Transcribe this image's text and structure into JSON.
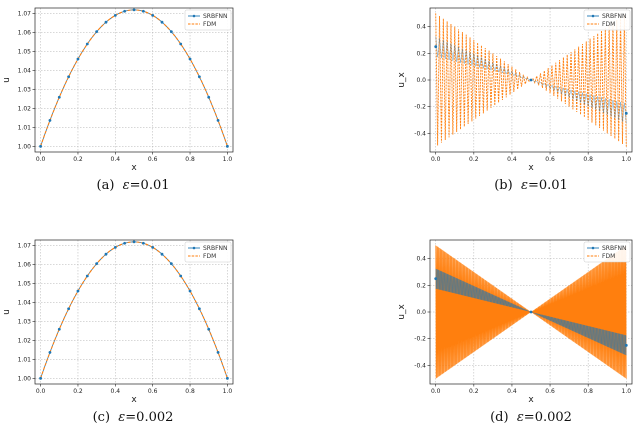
{
  "captions": [
    {
      "label": "(a)",
      "symbol": "ε",
      "value": "=0.01"
    },
    {
      "label": "(b)",
      "symbol": "ε",
      "value": "=0.01"
    },
    {
      "label": "(c)",
      "symbol": "ε",
      "value": "=0.002"
    },
    {
      "label": "(d)",
      "symbol": "ε",
      "value": "=0.002"
    }
  ],
  "colors": {
    "srbfnn": "#1f77b4",
    "fdm": "#ff7f0e",
    "grid": "#b0b0b0"
  },
  "chart_data": [
    {
      "type": "line",
      "xlabel": "x",
      "ylabel": "u",
      "xlim": [
        -0.03,
        1.03
      ],
      "ylim": [
        0.997,
        1.073
      ],
      "xticks": [
        "0.0",
        "0.2",
        "0.4",
        "0.6",
        "0.8",
        "1.0"
      ],
      "yticks": [
        "1.00",
        "1.01",
        "1.02",
        "1.03",
        "1.04",
        "1.05",
        "1.06",
        "1.07"
      ],
      "legend": [
        "SRBFNN",
        "FDM"
      ],
      "legend_position": "upper-right",
      "grid": true,
      "series": [
        {
          "name": "SRBFNN",
          "kind": "markers",
          "x": [
            0,
            0.05,
            0.1,
            0.15,
            0.2,
            0.25,
            0.3,
            0.35,
            0.4,
            0.45,
            0.5,
            0.55,
            0.6,
            0.65,
            0.7,
            0.75,
            0.8,
            0.85,
            0.9,
            0.95,
            1.0
          ],
          "y": [
            1.0,
            1.0137,
            1.0259,
            1.0367,
            1.0461,
            1.054,
            1.0605,
            1.0655,
            1.0691,
            1.0713,
            1.072,
            1.0713,
            1.0691,
            1.0655,
            1.0605,
            1.054,
            1.0461,
            1.0367,
            1.0259,
            1.0137,
            1.0
          ]
        },
        {
          "name": "FDM",
          "kind": "dashed",
          "curve": "parabola",
          "peak": 1.072,
          "base": 1.0
        }
      ]
    },
    {
      "type": "line",
      "xlabel": "x",
      "ylabel": "u_x",
      "xlim": [
        -0.03,
        1.03
      ],
      "ylim": [
        -0.54,
        0.54
      ],
      "xticks": [
        "0.0",
        "0.2",
        "0.4",
        "0.6",
        "0.8",
        "1.0"
      ],
      "yticks": [
        "-0.4",
        "-0.2",
        "0.0",
        "0.2",
        "0.4"
      ],
      "legend": [
        "SRBFNN",
        "FDM"
      ],
      "legend_position": "upper-right",
      "grid": true,
      "series": [
        {
          "name": "SRBFNN",
          "kind": "oscillating",
          "amplitude": 0.5,
          "center": 0.25,
          "periods": 50
        },
        {
          "name": "FDM",
          "kind": "oscillating-dashed",
          "amplitude": 0.5,
          "center": 0.25,
          "periods": 50
        }
      ]
    },
    {
      "type": "line",
      "xlabel": "x",
      "ylabel": "u",
      "xlim": [
        -0.03,
        1.03
      ],
      "ylim": [
        0.997,
        1.073
      ],
      "xticks": [
        "0.0",
        "0.2",
        "0.4",
        "0.6",
        "0.8",
        "1.0"
      ],
      "yticks": [
        "1.00",
        "1.01",
        "1.02",
        "1.03",
        "1.04",
        "1.05",
        "1.06",
        "1.07"
      ],
      "legend": [
        "SRBFNN",
        "FDM"
      ],
      "legend_position": "upper-right",
      "grid": true,
      "series": [
        {
          "name": "SRBFNN",
          "kind": "markers",
          "x": [
            0,
            0.05,
            0.1,
            0.15,
            0.2,
            0.25,
            0.3,
            0.35,
            0.4,
            0.45,
            0.5,
            0.55,
            0.6,
            0.65,
            0.7,
            0.75,
            0.8,
            0.85,
            0.9,
            0.95,
            1.0
          ],
          "y": [
            1.0,
            1.0137,
            1.0259,
            1.0367,
            1.0461,
            1.054,
            1.0605,
            1.0655,
            1.0691,
            1.0713,
            1.072,
            1.0713,
            1.0691,
            1.0655,
            1.0605,
            1.054,
            1.0461,
            1.0367,
            1.0259,
            1.0137,
            1.0
          ]
        },
        {
          "name": "FDM",
          "kind": "dashed",
          "curve": "parabola",
          "peak": 1.072,
          "base": 1.0
        }
      ]
    },
    {
      "type": "line",
      "xlabel": "x",
      "ylabel": "u_x",
      "xlim": [
        -0.03,
        1.03
      ],
      "ylim": [
        -0.54,
        0.54
      ],
      "xticks": [
        "0.0",
        "0.2",
        "0.4",
        "0.6",
        "0.8",
        "1.0"
      ],
      "yticks": [
        "-0.4",
        "-0.2",
        "0.0",
        "0.2",
        "0.4"
      ],
      "legend": [
        "SRBFNN",
        "FDM"
      ],
      "legend_position": "upper-right",
      "grid": true,
      "series": [
        {
          "name": "SRBFNN",
          "kind": "oscillating",
          "amplitude": 0.5,
          "center": 0.25,
          "periods": 250
        },
        {
          "name": "FDM",
          "kind": "oscillating-dashed",
          "amplitude": 0.5,
          "center": 0.25,
          "periods": 250
        }
      ]
    }
  ]
}
